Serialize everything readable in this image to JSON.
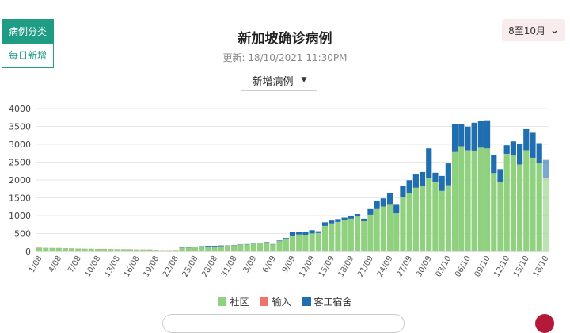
{
  "side_tabs": {
    "by_type": "病例分类",
    "daily_new": "每日新增"
  },
  "header": {
    "title": "新加坡确诊病例",
    "updated": "更新: 18/10/2021 11:30PM"
  },
  "metric_select": {
    "label": "新增病例",
    "caret_icon": "caret-down-icon"
  },
  "range_select": {
    "label": "8至10月",
    "chevron_icon": "chevron-down-icon"
  },
  "legend": {
    "community": "社区",
    "imported": "输入",
    "dormitory": "客工宿舍"
  },
  "chart_data": {
    "type": "bar",
    "stacked": true,
    "ylim": [
      0,
      4000
    ],
    "yticks": [
      0,
      500,
      1000,
      1500,
      2000,
      2500,
      3000,
      3500,
      4000
    ],
    "x": [
      "1/08",
      "2/08",
      "3/08",
      "4/08",
      "5/08",
      "6/08",
      "7/08",
      "8/08",
      "9/08",
      "10/08",
      "11/08",
      "12/08",
      "13/08",
      "14/08",
      "15/08",
      "16/08",
      "17/08",
      "18/08",
      "19/08",
      "20/08",
      "21/08",
      "22/08",
      "23/08",
      "24/08",
      "25/08",
      "26/08",
      "27/08",
      "28/08",
      "29/08",
      "30/08",
      "31/08",
      "1/09",
      "2/09",
      "3/09",
      "4/09",
      "5/09",
      "6/09",
      "7/09",
      "8/09",
      "9/09",
      "10/09",
      "11/09",
      "12/09",
      "13/09",
      "14/09",
      "15/09",
      "16/09",
      "17/09",
      "18/09",
      "19/09",
      "20/09",
      "21/09",
      "22/09",
      "23/09",
      "24/09",
      "25/09",
      "26/09",
      "27/09",
      "28/09",
      "29/09",
      "30/09",
      "1/10",
      "2/10",
      "3/10",
      "4/10",
      "5/10",
      "6/10",
      "7/10",
      "8/10",
      "9/10",
      "10/10",
      "11/10",
      "12/10",
      "13/10",
      "14/10",
      "15/10",
      "16/10",
      "17/10",
      "18/10"
    ],
    "xtick_labels": [
      "1/08",
      "4/08",
      "7/08",
      "10/08",
      "13/08",
      "16/08",
      "19/08",
      "22/08",
      "25/08",
      "28/08",
      "31/08",
      "3/09",
      "6/09",
      "9/09",
      "12/09",
      "15/09",
      "18/09",
      "21/09",
      "24/09",
      "27/09",
      "30/09",
      "03/10",
      "06/10",
      "09/10",
      "12/10",
      "15/10",
      "18/10"
    ],
    "grid": true,
    "series": [
      {
        "name": "社区",
        "color": "#8fd17f",
        "values": [
          100,
          95,
          90,
          90,
          85,
          80,
          75,
          70,
          70,
          65,
          65,
          60,
          55,
          55,
          55,
          50,
          50,
          50,
          40,
          30,
          30,
          35,
          100,
          100,
          110,
          120,
          130,
          130,
          140,
          150,
          160,
          180,
          190,
          200,
          230,
          250,
          190,
          280,
          340,
          420,
          470,
          460,
          500,
          510,
          710,
          780,
          820,
          880,
          910,
          970,
          840,
          1020,
          1200,
          1250,
          1320,
          1060,
          1510,
          1630,
          1780,
          1820,
          2050,
          1930,
          1690,
          1850,
          2780,
          2940,
          2830,
          2820,
          2900,
          2880,
          2190,
          1950,
          2730,
          2680,
          2430,
          2830,
          2620,
          2470,
          2040
        ]
      },
      {
        "name": "输入",
        "color": "#f0736b",
        "values": [
          4,
          4,
          4,
          4,
          4,
          4,
          4,
          4,
          4,
          4,
          4,
          4,
          4,
          4,
          4,
          4,
          4,
          4,
          4,
          4,
          4,
          4,
          4,
          4,
          4,
          4,
          4,
          4,
          4,
          4,
          4,
          4,
          4,
          4,
          4,
          4,
          4,
          4,
          4,
          4,
          4,
          4,
          4,
          4,
          4,
          4,
          4,
          4,
          4,
          4,
          4,
          4,
          4,
          4,
          4,
          4,
          4,
          4,
          4,
          4,
          4,
          4,
          4,
          4,
          4,
          4,
          4,
          4,
          4,
          4,
          4,
          4,
          4,
          4,
          4,
          4,
          4,
          4,
          4
        ]
      },
      {
        "name": "客工宿舍",
        "color": "#1f6fb0",
        "values": [
          0,
          0,
          0,
          0,
          0,
          0,
          0,
          0,
          0,
          0,
          0,
          0,
          0,
          0,
          0,
          0,
          0,
          0,
          0,
          0,
          0,
          0,
          30,
          20,
          20,
          20,
          20,
          20,
          20,
          10,
          10,
          10,
          10,
          10,
          10,
          10,
          10,
          20,
          30,
          130,
          80,
          90,
          90,
          50,
          100,
          80,
          80,
          60,
          70,
          70,
          70,
          180,
          220,
          230,
          300,
          260,
          310,
          360,
          370,
          400,
          830,
          270,
          420,
          610,
          790,
          630,
          660,
          780,
          760,
          790,
          500,
          350,
          240,
          400,
          590,
          590,
          700,
          560,
          520
        ]
      }
    ]
  }
}
